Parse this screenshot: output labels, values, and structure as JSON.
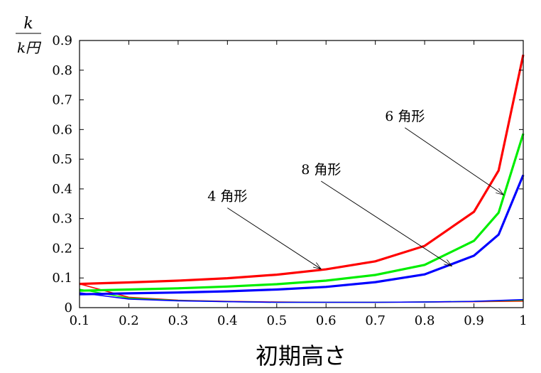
{
  "chart_data": {
    "type": "line",
    "title": "",
    "xlabel": "初期高さ",
    "ylabel_num": "k",
    "ylabel_den": "k円",
    "xlim": [
      0.1,
      1.0
    ],
    "ylim": [
      0,
      0.9
    ],
    "xticks": [
      "0.1",
      "0.2",
      "0.3",
      "0.4",
      "0.5",
      "0.6",
      "0.7",
      "0.8",
      "0.9",
      "1"
    ],
    "yticks": [
      "0",
      "0.1",
      "0.2",
      "0.3",
      "0.4",
      "0.5",
      "0.6",
      "0.7",
      "0.8",
      "0.9"
    ],
    "grid": false,
    "series": [
      {
        "name": "4角形",
        "color": "#ff0000",
        "width": "thick",
        "x": [
          0.1,
          0.2,
          0.3,
          0.4,
          0.5,
          0.6,
          0.7,
          0.8,
          0.9,
          0.95,
          1.0
        ],
        "y": [
          0.08,
          0.085,
          0.091,
          0.099,
          0.111,
          0.129,
          0.156,
          0.208,
          0.323,
          0.462,
          0.852
        ]
      },
      {
        "name": "6角形",
        "color": "#00ee00",
        "width": "thick",
        "x": [
          0.1,
          0.2,
          0.3,
          0.4,
          0.5,
          0.6,
          0.7,
          0.8,
          0.9,
          0.95,
          1.0
        ],
        "y": [
          0.057,
          0.061,
          0.065,
          0.071,
          0.079,
          0.091,
          0.11,
          0.144,
          0.225,
          0.32,
          0.586
        ]
      },
      {
        "name": "8角形",
        "color": "#0000ff",
        "width": "thick",
        "x": [
          0.1,
          0.2,
          0.3,
          0.4,
          0.5,
          0.6,
          0.7,
          0.8,
          0.9,
          0.95,
          1.0
        ],
        "y": [
          0.045,
          0.048,
          0.051,
          0.055,
          0.061,
          0.07,
          0.086,
          0.112,
          0.175,
          0.246,
          0.447
        ]
      },
      {
        "name": "4角形 (thin)",
        "color": "#ff0000",
        "width": "thin",
        "x": [
          0.1,
          0.2,
          0.3,
          0.4,
          0.5,
          0.6,
          0.7,
          0.8,
          0.9,
          1.0
        ],
        "y": [
          0.08,
          0.035,
          0.025,
          0.021,
          0.019,
          0.018,
          0.018,
          0.019,
          0.02,
          0.022
        ]
      },
      {
        "name": "6角形 (thin)",
        "color": "#00ee00",
        "width": "thin",
        "x": [
          0.1,
          0.2,
          0.3,
          0.4,
          0.5,
          0.6,
          0.7,
          0.8,
          0.9,
          1.0
        ],
        "y": [
          0.062,
          0.032,
          0.024,
          0.02,
          0.018,
          0.018,
          0.018,
          0.019,
          0.021,
          0.025
        ]
      },
      {
        "name": "8角形 (thin)",
        "color": "#0000ff",
        "width": "thin",
        "x": [
          0.1,
          0.2,
          0.3,
          0.4,
          0.5,
          0.6,
          0.7,
          0.8,
          0.9,
          1.0
        ],
        "y": [
          0.05,
          0.029,
          0.023,
          0.02,
          0.018,
          0.018,
          0.018,
          0.019,
          0.021,
          0.027
        ]
      }
    ],
    "annotations": [
      {
        "text": "4 角形",
        "text_at": [
          0.4,
          0.36
        ],
        "arrow_to": [
          0.59,
          0.13
        ]
      },
      {
        "text": "8 角形",
        "text_at": [
          0.59,
          0.45
        ],
        "arrow_to": [
          0.855,
          0.14
        ]
      },
      {
        "text": "6 角形",
        "text_at": [
          0.76,
          0.63
        ],
        "arrow_to": [
          0.96,
          0.38
        ]
      }
    ]
  }
}
